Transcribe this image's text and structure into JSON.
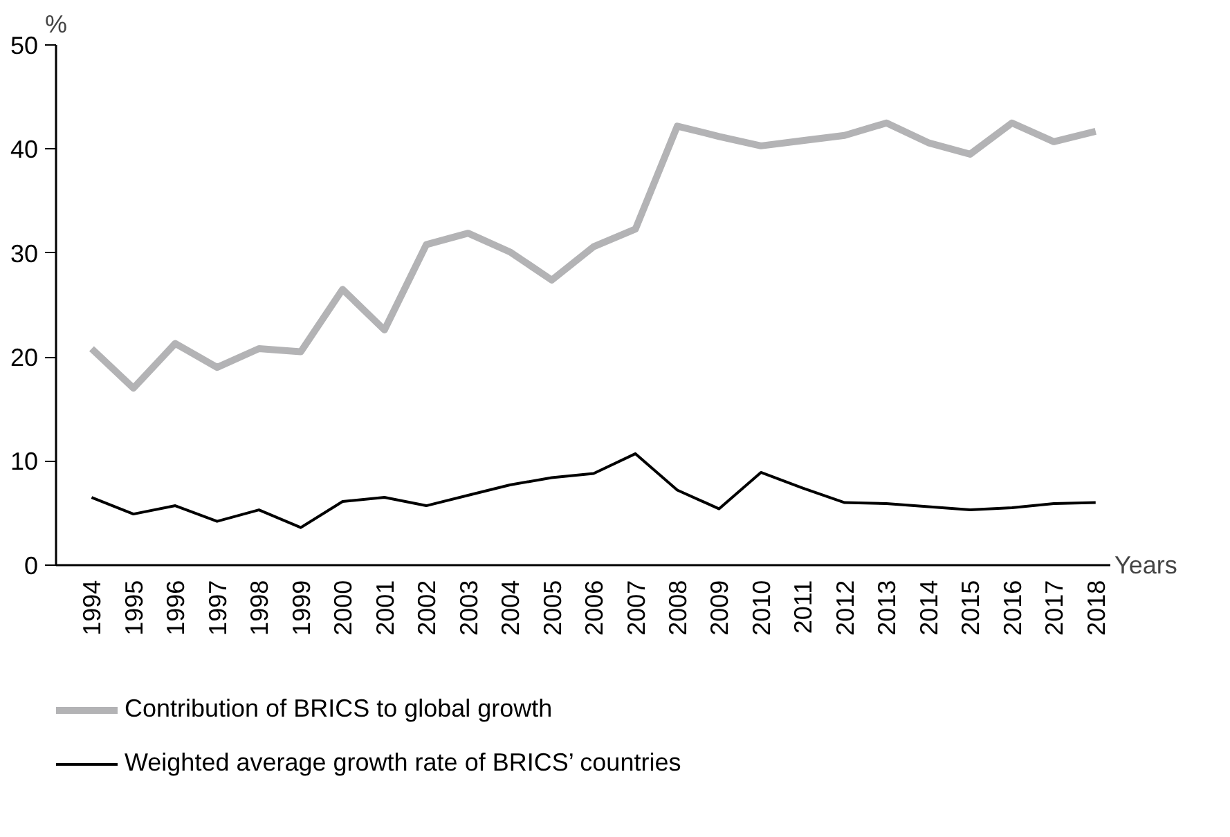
{
  "chart_data": {
    "type": "line",
    "xlabel": "Years",
    "ylabel": "%",
    "categories": [
      "1994",
      "1995",
      "1996",
      "1997",
      "1998",
      "1999",
      "2000",
      "2001",
      "2002",
      "2003",
      "2004",
      "2005",
      "2006",
      "2007",
      "2008",
      "2009",
      "2010",
      "2011",
      "2012",
      "2013",
      "2014",
      "2015",
      "2016",
      "2017",
      "2018"
    ],
    "series": [
      {
        "name": "Contribution of BRICS to global growth",
        "color": "#b3b3b5",
        "values": [
          20.8,
          17.0,
          21.3,
          19.0,
          20.8,
          20.5,
          26.5,
          22.6,
          30.8,
          31.9,
          30.1,
          27.4,
          30.6,
          32.3,
          42.2,
          41.2,
          40.3,
          40.8,
          41.3,
          42.5,
          40.6,
          39.5,
          42.5,
          40.7,
          41.7
        ]
      },
      {
        "name": "Weighted average growth rate of BRICS’ countries",
        "color": "#000000",
        "values": [
          6.5,
          4.9,
          5.7,
          4.2,
          5.3,
          3.6,
          6.1,
          6.5,
          5.7,
          6.7,
          7.7,
          8.4,
          8.8,
          10.7,
          7.2,
          5.4,
          8.9,
          7.4,
          6.0,
          5.9,
          5.6,
          5.3,
          5.5,
          5.9,
          6.0
        ]
      }
    ],
    "ylim": [
      0,
      50
    ],
    "yticks": [
      0,
      10,
      20,
      30,
      40,
      50
    ],
    "grid": false,
    "legend": "bottom",
    "marker": "none",
    "line_style": "solid"
  }
}
